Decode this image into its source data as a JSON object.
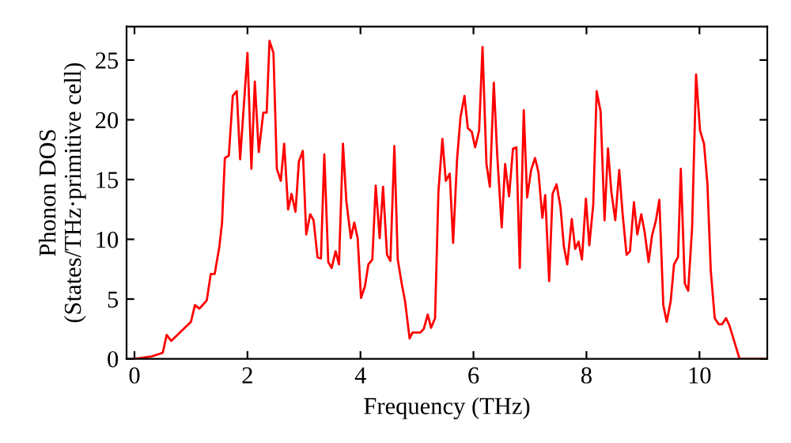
{
  "chart_data": {
    "type": "line",
    "xlabel": "Frequency (THz)",
    "ylabel": "Phonon DOS\n(States/THz·primitive cell)",
    "xlim": [
      -0.14,
      11.2
    ],
    "ylim": [
      0,
      27.8
    ],
    "xticks": [
      0,
      2,
      4,
      6,
      8,
      10
    ],
    "yticks": [
      0,
      5,
      10,
      15,
      20,
      25
    ],
    "grid": false,
    "legend": false,
    "series": [
      {
        "color": "#ff0000",
        "x": [
          0,
          0.3,
          0.5,
          0.57,
          0.65,
          1.0,
          1.07,
          1.15,
          1.28,
          1.35,
          1.42,
          1.5,
          1.55,
          1.6,
          1.67,
          1.74,
          1.81,
          1.87,
          2.0,
          2.07,
          2.13,
          2.2,
          2.28,
          2.34,
          2.39,
          2.46,
          2.52,
          2.59,
          2.65,
          2.72,
          2.78,
          2.85,
          2.91,
          2.98,
          3.04,
          3.11,
          3.17,
          3.24,
          3.3,
          3.36,
          3.43,
          3.49,
          3.56,
          3.62,
          3.69,
          3.75,
          3.83,
          3.89,
          3.95,
          4.01,
          4.08,
          4.14,
          4.21,
          4.27,
          4.34,
          4.4,
          4.47,
          4.53,
          4.6,
          4.66,
          4.73,
          4.79,
          4.87,
          4.92,
          5.06,
          5.12,
          5.19,
          5.25,
          5.32,
          5.38,
          5.45,
          5.51,
          5.58,
          5.64,
          5.71,
          5.77,
          5.84,
          5.9,
          5.97,
          6.03,
          6.1,
          6.16,
          6.23,
          6.29,
          6.36,
          6.42,
          6.5,
          6.56,
          6.63,
          6.7,
          6.76,
          6.82,
          6.89,
          6.95,
          7.02,
          7.09,
          7.15,
          7.22,
          7.27,
          7.34,
          7.4,
          7.47,
          7.54,
          7.6,
          7.66,
          7.74,
          7.8,
          7.86,
          7.92,
          7.99,
          8.05,
          8.12,
          8.18,
          8.25,
          8.32,
          8.38,
          8.44,
          8.51,
          8.58,
          8.64,
          8.71,
          8.77,
          8.84,
          8.9,
          8.97,
          9.03,
          9.1,
          9.16,
          9.23,
          9.29,
          9.36,
          9.42,
          9.49,
          9.55,
          9.62,
          9.67,
          9.74,
          9.8,
          9.87,
          9.94,
          10.01,
          10.08,
          10.14,
          10.2,
          10.27,
          10.34,
          10.4,
          10.47,
          10.53,
          10.6,
          10.71,
          11.2
        ],
        "values": [
          0,
          0.2,
          0.5,
          2.0,
          1.5,
          3.1,
          4.5,
          4.2,
          4.9,
          7.1,
          7.1,
          9.3,
          11.4,
          16.8,
          17.0,
          22.0,
          22.4,
          16.7,
          25.6,
          15.9,
          23.2,
          17.3,
          20.6,
          20.6,
          26.6,
          25.6,
          15.9,
          14.9,
          18.0,
          12.5,
          13.8,
          12.3,
          16.5,
          17.4,
          10.4,
          12.1,
          11.6,
          8.5,
          8.4,
          17.1,
          8.1,
          7.6,
          9.0,
          7.9,
          18.0,
          13.2,
          10.1,
          11.4,
          10.1,
          5.1,
          6.1,
          7.9,
          8.3,
          14.5,
          10.1,
          14.4,
          8.7,
          8.2,
          17.8,
          8.3,
          6.3,
          4.8,
          1.7,
          2.2,
          2.2,
          2.5,
          3.7,
          2.6,
          3.4,
          14.0,
          18.4,
          14.9,
          15.5,
          9.7,
          16.7,
          20.2,
          22.0,
          19.3,
          19.0,
          17.7,
          19.1,
          26.1,
          16.3,
          14.4,
          23.1,
          17.1,
          11.0,
          16.3,
          13.6,
          17.6,
          17.7,
          7.6,
          20.8,
          13.5,
          15.8,
          16.8,
          15.6,
          11.8,
          13.7,
          6.5,
          13.8,
          14.6,
          12.7,
          9.4,
          7.9,
          11.7,
          9.2,
          9.8,
          8.3,
          13.4,
          9.5,
          12.9,
          22.4,
          20.7,
          11.6,
          17.6,
          14.0,
          11.6,
          15.8,
          12.1,
          8.7,
          9.0,
          13.1,
          10.4,
          12.1,
          10.6,
          8.1,
          10.3,
          11.6,
          13.3,
          4.5,
          3.1,
          4.8,
          7.9,
          8.5,
          15.9,
          6.3,
          5.7,
          11.0,
          23.8,
          19.1,
          18.0,
          14.7,
          7.4,
          3.4,
          2.9,
          2.9,
          3.4,
          2.8,
          1.7,
          0,
          0
        ]
      }
    ]
  }
}
